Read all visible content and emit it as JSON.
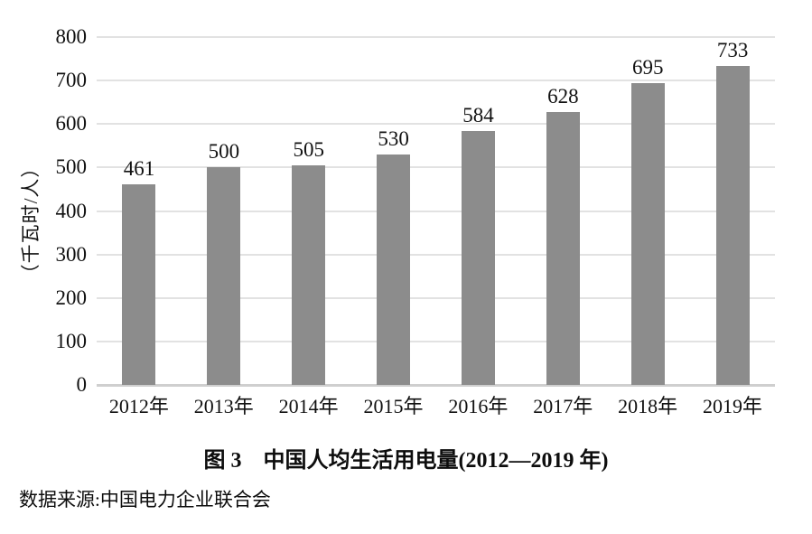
{
  "chart_data": {
    "type": "bar",
    "title": "图 3　中国人均生活用电量(2012—2019 年)",
    "source": "数据来源:中国电力企业联合会",
    "categories": [
      "2012年",
      "2013年",
      "2014年",
      "2015年",
      "2016年",
      "2017年",
      "2018年",
      "2019年"
    ],
    "values": [
      461,
      500,
      505,
      530,
      584,
      628,
      695,
      733
    ],
    "xlabel": "",
    "ylabel": "（千瓦时/人）",
    "ylim": [
      0,
      800
    ],
    "yticks": [
      0,
      100,
      200,
      300,
      400,
      500,
      600,
      700,
      800
    ],
    "grid": "horizontal",
    "legend_position": "none",
    "bar_color": "#8c8c8c",
    "gridline_color": "#e2e2e2",
    "axis_color": "#cfcfcf",
    "text_color": "#111111"
  },
  "caption": "图 3　中国人均生活用电量(2012—2019 年)",
  "source_note": "数据来源:中国电力企业联合会"
}
